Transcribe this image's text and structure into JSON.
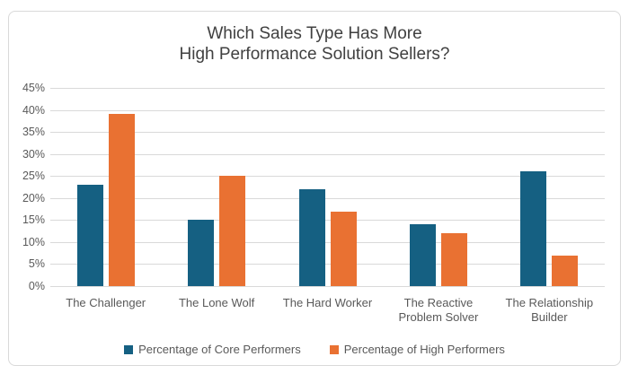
{
  "chart_data": {
    "type": "bar",
    "title": "Which Sales Type Has More High Performance Solution Sellers?",
    "title_lines": [
      "Which Sales Type Has More",
      "High Performance Solution Sellers?"
    ],
    "categories": [
      "The Challenger",
      "The Lone Wolf",
      "The Hard Worker",
      "The Reactive Problem Solver",
      "The Relationship Builder"
    ],
    "series": [
      {
        "name": "Percentage of Core Performers",
        "color": "#156082",
        "values": [
          23,
          15,
          22,
          14,
          26
        ]
      },
      {
        "name": "Percentage of High Performers",
        "color": "#E97132",
        "values": [
          39,
          25,
          17,
          12,
          7
        ]
      }
    ],
    "xlabel": "",
    "ylabel": "",
    "ylim": [
      0,
      45
    ],
    "yticks": [
      0,
      5,
      10,
      15,
      20,
      25,
      30,
      35,
      40,
      45
    ],
    "ytick_suffix": "%",
    "grid": true,
    "legend_position": "bottom"
  },
  "colors": {
    "title_text": "#404040",
    "axis_text": "#595959",
    "gridline": "#D9D9D9",
    "frame_border": "#D9D9D9",
    "background": "#FFFFFF"
  }
}
